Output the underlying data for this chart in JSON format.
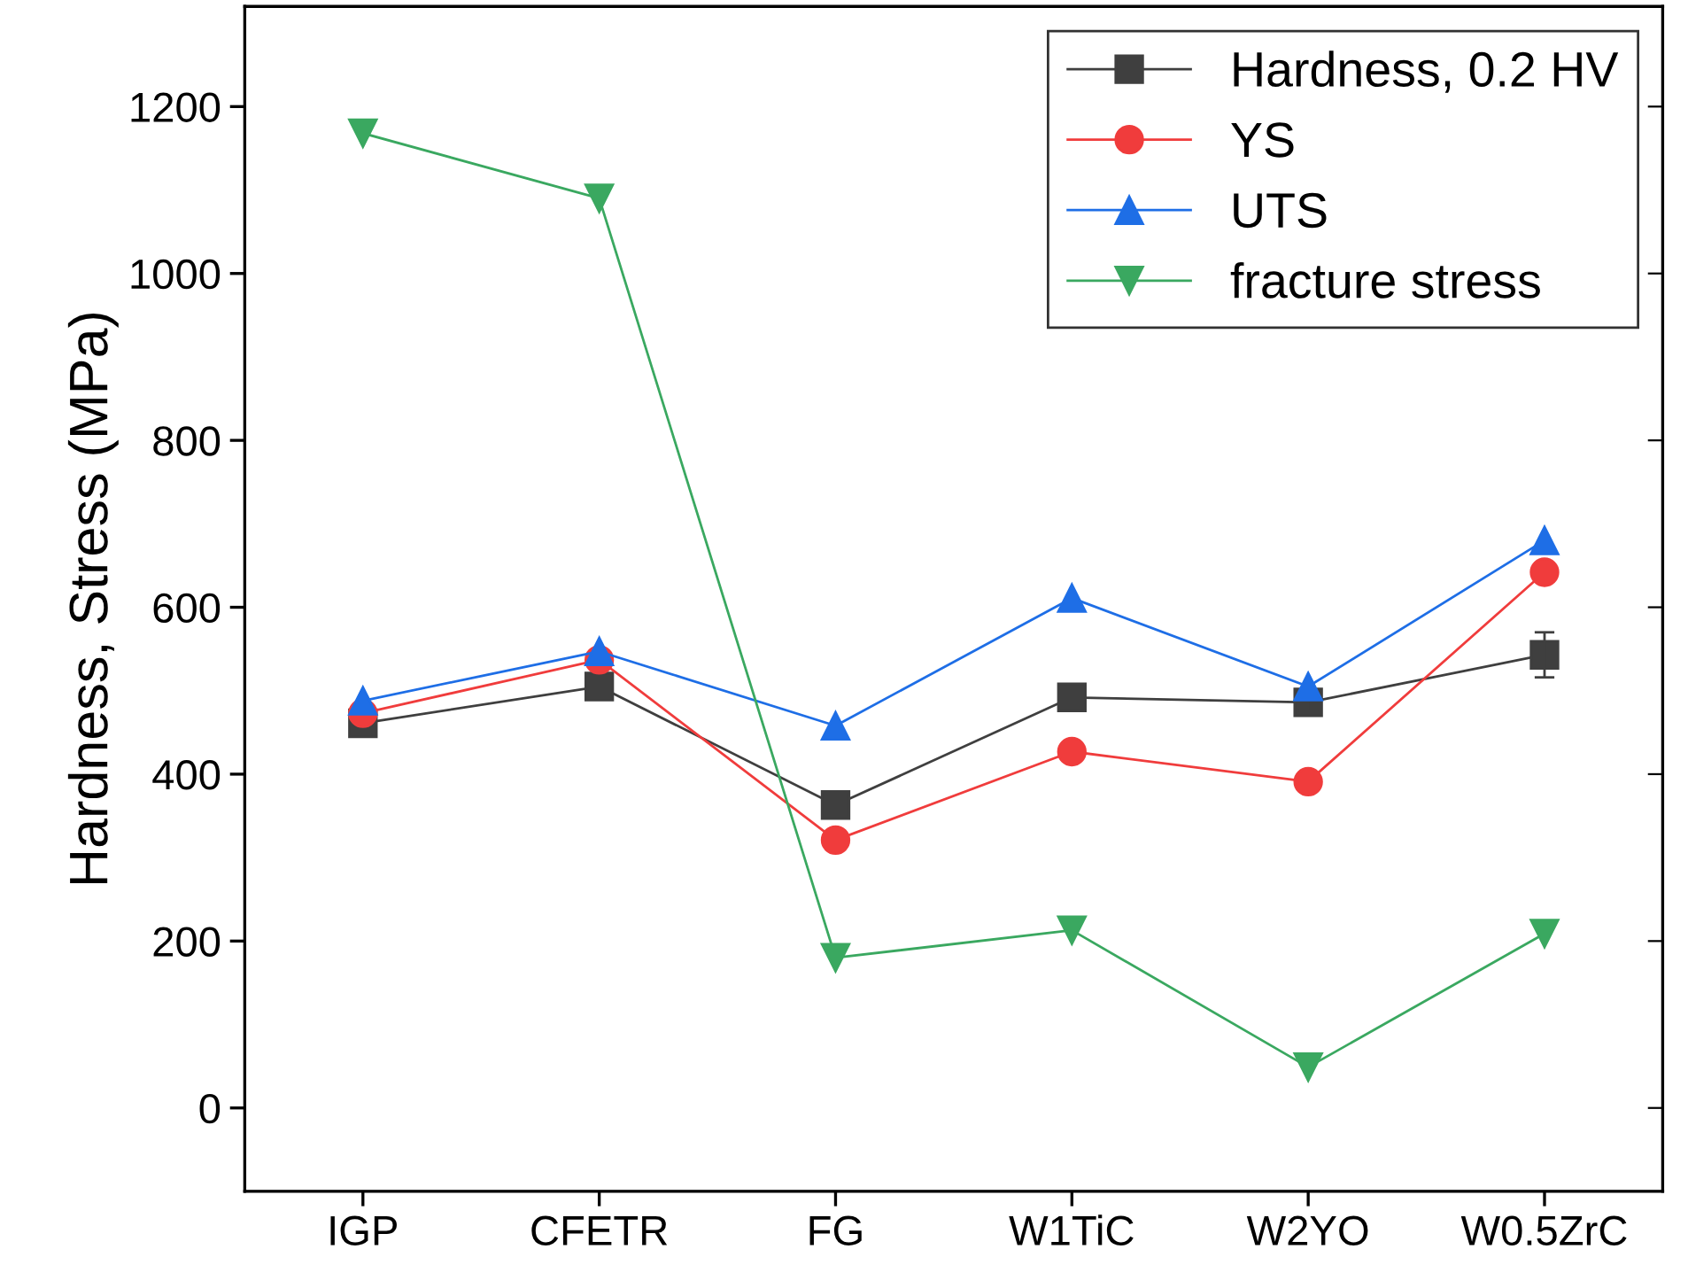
{
  "chart_data": {
    "type": "line",
    "ylabel": "Hardness, Stress (MPa)",
    "categories": [
      "IGP",
      "CFETR",
      "FG",
      "W1TiC",
      "W2YO",
      "W0.5ZrC"
    ],
    "series": [
      {
        "name": "Hardness, 0.2 HV",
        "color": "#3f3f3f",
        "marker": "square",
        "values": [
          461,
          505,
          363,
          492,
          486,
          543
        ],
        "errors": [
          null,
          null,
          null,
          null,
          10,
          27
        ]
      },
      {
        "name": "YS",
        "color": "#f03c3c",
        "marker": "circle",
        "values": [
          473,
          537,
          321,
          427,
          391,
          642
        ]
      },
      {
        "name": "UTS",
        "color": "#1e6ee6",
        "marker": "triangle",
        "values": [
          488,
          547,
          458,
          611,
          505,
          680
        ]
      },
      {
        "name": "fracture stress",
        "color": "#3aa860",
        "marker": "triangle_down",
        "values": [
          1168,
          1090,
          180,
          213,
          49,
          209
        ]
      }
    ],
    "ylim": [
      -100,
      1320
    ],
    "yticks": [
      0,
      200,
      400,
      600,
      800,
      1000,
      1200
    ],
    "grid": false,
    "legend": "top right"
  }
}
